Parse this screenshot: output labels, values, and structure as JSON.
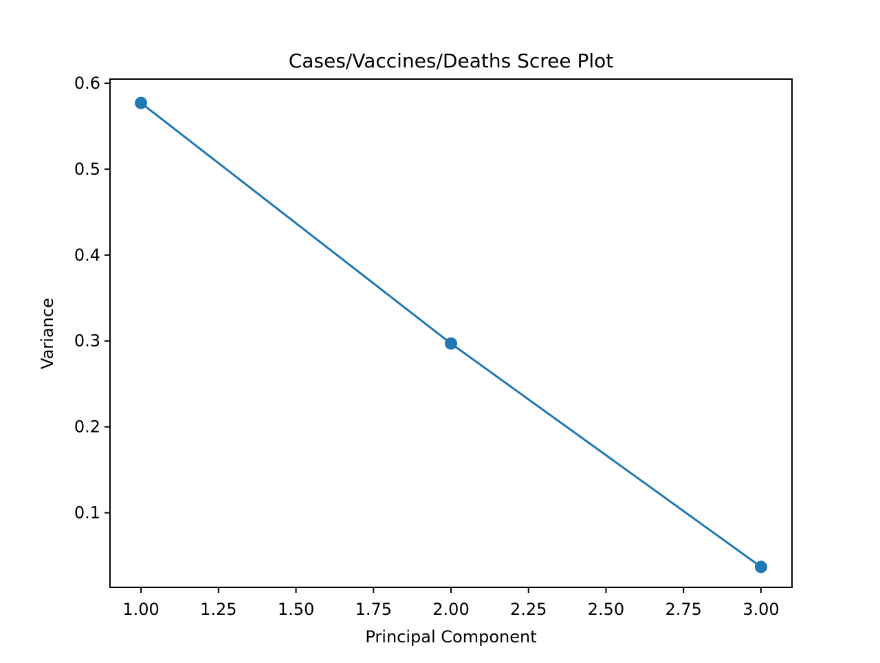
{
  "chart_data": {
    "type": "line",
    "title": "Cases/Vaccines/Deaths Scree Plot",
    "xlabel": "Principal Component",
    "ylabel": "Variance",
    "x": [
      1,
      2,
      3
    ],
    "series": [
      {
        "values": [
          0.577,
          0.297,
          0.037
        ]
      }
    ],
    "xlim": [
      0.9,
      3.1
    ],
    "ylim": [
      0.0132,
      0.6048
    ],
    "xticks": [
      1.0,
      1.25,
      1.5,
      1.75,
      2.0,
      2.25,
      2.5,
      2.75,
      3.0
    ],
    "xtick_labels": [
      "1.00",
      "1.25",
      "1.50",
      "1.75",
      "2.00",
      "2.25",
      "2.50",
      "2.75",
      "3.00"
    ],
    "yticks": [
      0.1,
      0.2,
      0.3,
      0.4,
      0.5,
      0.6
    ],
    "ytick_labels": [
      "0.1",
      "0.2",
      "0.3",
      "0.4",
      "0.5",
      "0.6"
    ],
    "grid": false,
    "marker": "circle",
    "colors": {
      "series": "#1f77b4",
      "axes": "#000000",
      "background": "#ffffff"
    }
  }
}
